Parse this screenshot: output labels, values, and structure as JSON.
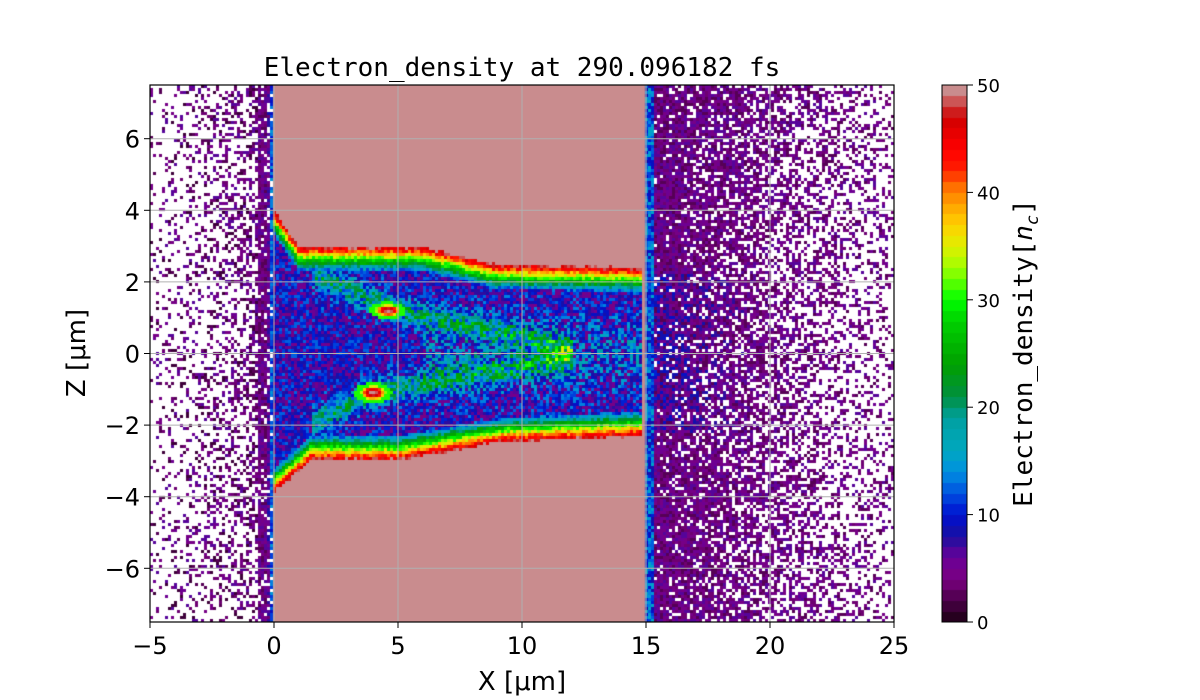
{
  "chart_data": {
    "type": "heatmap",
    "title": "Electron_density at 290.096182 fs",
    "xlabel": "X [μm]",
    "ylabel": "Z [μm]",
    "xlim": [
      -5,
      25
    ],
    "ylim": [
      -7.5,
      7.5
    ],
    "xticks": [
      "−5",
      "0",
      "5",
      "10",
      "15",
      "20",
      "25"
    ],
    "xtick_values": [
      -5,
      0,
      5,
      10,
      15,
      20,
      25
    ],
    "yticks": [
      "−6",
      "−4",
      "−2",
      "0",
      "2",
      "4",
      "6"
    ],
    "ytick_values": [
      -6,
      -4,
      -2,
      0,
      2,
      4,
      6
    ],
    "grid": true,
    "colorbar": {
      "label": "Electron_density[n_c]",
      "label_main": "Electron_density",
      "label_unit": "n",
      "label_sub": "c",
      "range": [
        0,
        50
      ],
      "ticks": [
        "0",
        "10",
        "20",
        "30",
        "40",
        "50"
      ],
      "tick_values": [
        0,
        10,
        20,
        30,
        40,
        50
      ],
      "levels": 50
    },
    "colormap": [
      [
        0,
        "#1a0012"
      ],
      [
        2,
        "#4a0048"
      ],
      [
        4,
        "#7a0080"
      ],
      [
        6,
        "#6a0098"
      ],
      [
        8,
        "#1a10a0"
      ],
      [
        10,
        "#0010d0"
      ],
      [
        12,
        "#0050e0"
      ],
      [
        14,
        "#0090e0"
      ],
      [
        16,
        "#00a8c0"
      ],
      [
        19,
        "#00a0a0"
      ],
      [
        21,
        "#009040"
      ],
      [
        24,
        "#00a000"
      ],
      [
        28,
        "#00d000"
      ],
      [
        30,
        "#00ff00"
      ],
      [
        33,
        "#a0ff00"
      ],
      [
        35,
        "#e0f000"
      ],
      [
        37,
        "#ffd000"
      ],
      [
        39,
        "#ffa000"
      ],
      [
        41,
        "#ff6000"
      ],
      [
        42,
        "#ff2000"
      ],
      [
        44,
        "#ff0000"
      ],
      [
        47,
        "#d00000"
      ],
      [
        48.5,
        "#cc5555"
      ],
      [
        50,
        "#c8a8aa"
      ]
    ],
    "regions": {
      "target_slab_x": [
        0,
        15
      ],
      "channel_half_width_at_x0": 4,
      "channel_half_width_at_x15": 2.5,
      "saturated_value": 50
    }
  }
}
